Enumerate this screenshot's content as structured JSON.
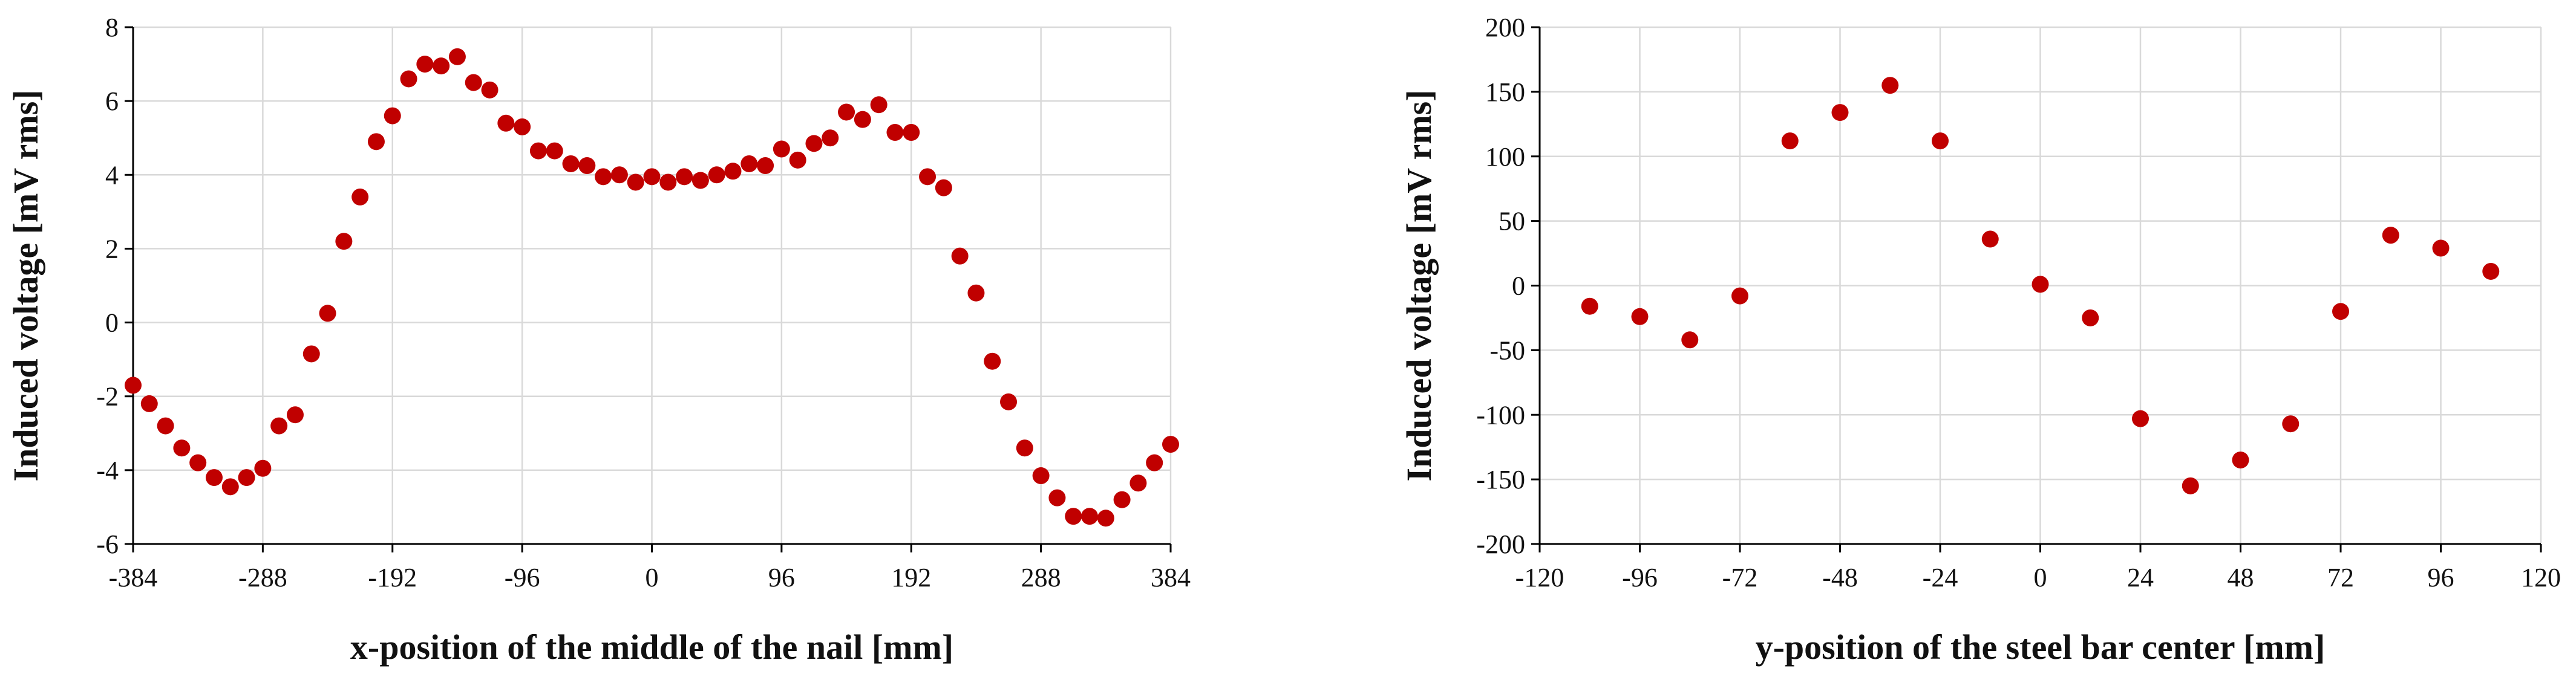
{
  "chart_data": [
    {
      "type": "scatter",
      "xlabel": "x-position of the middle of the nail [mm]",
      "ylabel": "Induced voltage [mV rms]",
      "xlim": [
        -384,
        384
      ],
      "ylim": [
        -6,
        8
      ],
      "xticks": [
        -384,
        -288,
        -192,
        -96,
        0,
        96,
        192,
        288,
        384
      ],
      "yticks": [
        -6,
        -4,
        -2,
        0,
        2,
        4,
        6,
        8
      ],
      "grid": true,
      "marker_color": "#c00000",
      "series": [
        {
          "points": [
            [
              -384,
              -1.7
            ],
            [
              -372,
              -2.2
            ],
            [
              -360,
              -2.8
            ],
            [
              -348,
              -3.4
            ],
            [
              -336,
              -3.8
            ],
            [
              -324,
              -4.2
            ],
            [
              -312,
              -4.45
            ],
            [
              -300,
              -4.2
            ],
            [
              -288,
              -3.95
            ],
            [
              -276,
              -2.8
            ],
            [
              -264,
              -2.5
            ],
            [
              -252,
              -0.85
            ],
            [
              -240,
              0.25
            ],
            [
              -228,
              2.2
            ],
            [
              -216,
              3.4
            ],
            [
              -204,
              4.9
            ],
            [
              -192,
              5.6
            ],
            [
              -180,
              6.6
            ],
            [
              -168,
              7.0
            ],
            [
              -156,
              6.95
            ],
            [
              -144,
              7.2
            ],
            [
              -132,
              6.5
            ],
            [
              -120,
              6.3
            ],
            [
              -108,
              5.4
            ],
            [
              -96,
              5.3
            ],
            [
              -84,
              4.65
            ],
            [
              -72,
              4.65
            ],
            [
              -60,
              4.3
            ],
            [
              -48,
              4.25
            ],
            [
              -36,
              3.95
            ],
            [
              -24,
              4.0
            ],
            [
              -12,
              3.8
            ],
            [
              0,
              3.95
            ],
            [
              12,
              3.8
            ],
            [
              24,
              3.95
            ],
            [
              36,
              3.85
            ],
            [
              48,
              4.0
            ],
            [
              60,
              4.1
            ],
            [
              72,
              4.3
            ],
            [
              84,
              4.25
            ],
            [
              96,
              4.7
            ],
            [
              108,
              4.4
            ],
            [
              120,
              4.85
            ],
            [
              132,
              5.0
            ],
            [
              144,
              5.7
            ],
            [
              156,
              5.5
            ],
            [
              168,
              5.9
            ],
            [
              180,
              5.15
            ],
            [
              192,
              5.15
            ],
            [
              204,
              3.95
            ],
            [
              216,
              3.65
            ],
            [
              228,
              1.8
            ],
            [
              240,
              0.8
            ],
            [
              252,
              -1.05
            ],
            [
              264,
              -2.15
            ],
            [
              276,
              -3.4
            ],
            [
              288,
              -4.15
            ],
            [
              300,
              -4.75
            ],
            [
              312,
              -5.25
            ],
            [
              324,
              -5.25
            ],
            [
              336,
              -5.3
            ],
            [
              348,
              -4.8
            ],
            [
              360,
              -4.35
            ],
            [
              372,
              -3.8
            ],
            [
              384,
              -3.3
            ]
          ]
        }
      ]
    },
    {
      "type": "scatter",
      "xlabel": "y-position of the steel bar center [mm]",
      "ylabel": "Induced voltage [mV rms]",
      "xlim": [
        -120,
        120
      ],
      "ylim": [
        -200,
        200
      ],
      "xticks": [
        -120,
        -96,
        -72,
        -48,
        -24,
        0,
        24,
        48,
        72,
        96,
        120
      ],
      "yticks": [
        -200,
        -150,
        -100,
        -50,
        0,
        50,
        100,
        150,
        200
      ],
      "grid": true,
      "marker_color": "#c00000",
      "series": [
        {
          "points": [
            [
              -108,
              -16
            ],
            [
              -96,
              -24
            ],
            [
              -84,
              -42
            ],
            [
              -72,
              -8
            ],
            [
              -60,
              112
            ],
            [
              -48,
              134
            ],
            [
              -36,
              155
            ],
            [
              -24,
              112
            ],
            [
              -12,
              36
            ],
            [
              0,
              1
            ],
            [
              12,
              -25
            ],
            [
              24,
              -103
            ],
            [
              36,
              -155
            ],
            [
              48,
              -135
            ],
            [
              60,
              -107
            ],
            [
              72,
              -20
            ],
            [
              84,
              39
            ],
            [
              96,
              29
            ],
            [
              108,
              11
            ]
          ]
        }
      ]
    }
  ]
}
